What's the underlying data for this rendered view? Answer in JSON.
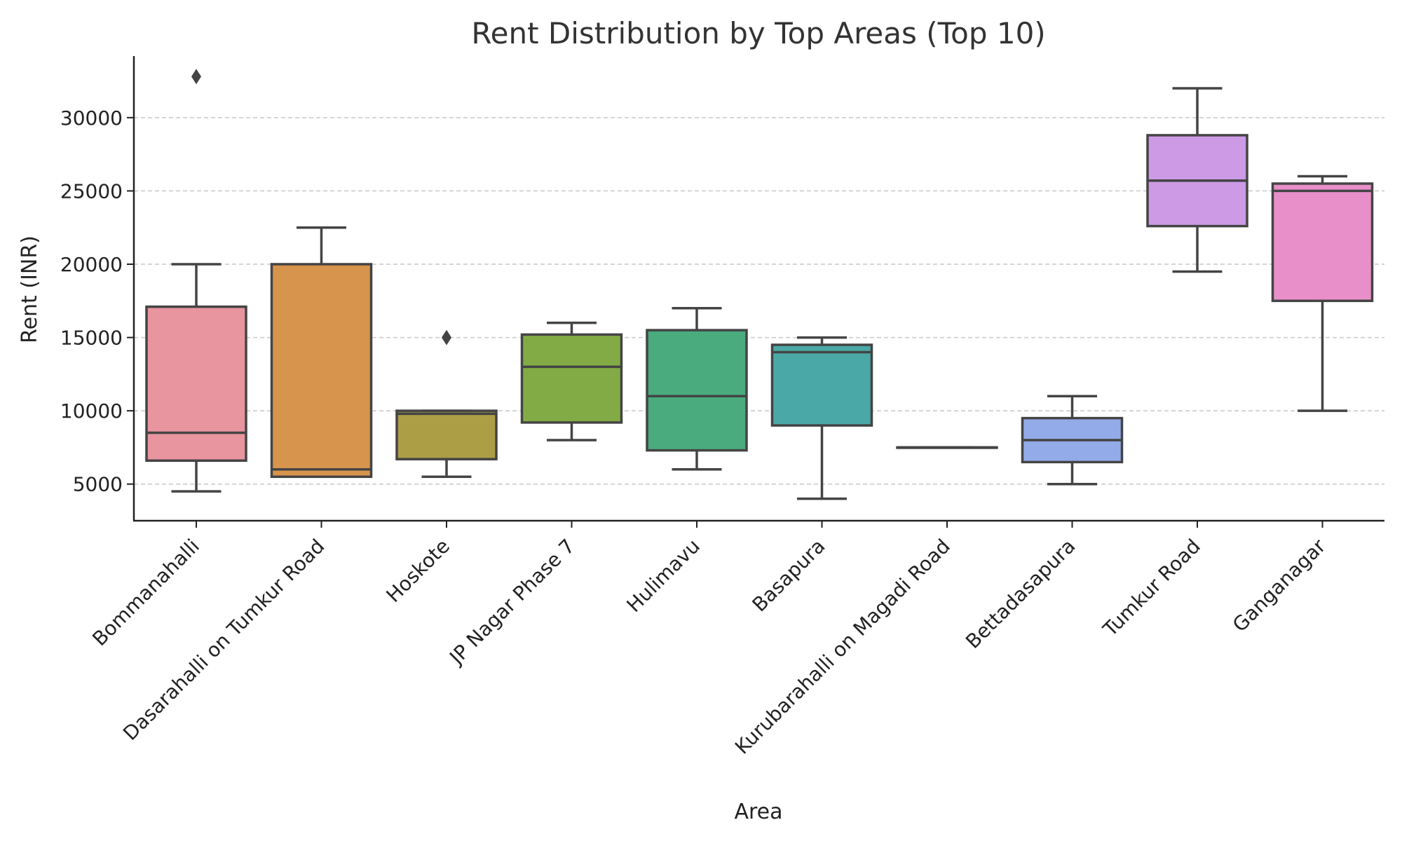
{
  "chart_data": {
    "type": "box",
    "title": "Rent Distribution by Top Areas (Top 10)",
    "xlabel": "Area",
    "ylabel": "Rent (INR)",
    "ylim": [
      2500,
      34200
    ],
    "yticks": [
      5000,
      10000,
      15000,
      20000,
      25000,
      30000
    ],
    "grid": "horizontal-dashed",
    "categories": [
      "Bommanahalli",
      "Dasarahalli on Tumkur Road",
      "Hoskote",
      "JP Nagar Phase 7",
      "Hulimavu",
      "Basapura",
      "Kurubarahalli on Magadi Road",
      "Bettadasapura",
      "Tumkur Road",
      "Ganganagar"
    ],
    "boxes": [
      {
        "whisker_low": 4500,
        "q1": 6600,
        "median": 8500,
        "q3": 17100,
        "whisker_high": 20000,
        "outliers": [
          32800
        ],
        "color": "#e8959f"
      },
      {
        "whisker_low": 5500,
        "q1": 5500,
        "median": 6000,
        "q3": 20000,
        "whisker_high": 22500,
        "outliers": [],
        "color": "#d7944c"
      },
      {
        "whisker_low": 5500,
        "q1": 6700,
        "median": 9800,
        "q3": 10000,
        "whisker_high": 10000,
        "outliers": [
          15000
        ],
        "color": "#ab9e45"
      },
      {
        "whisker_low": 8000,
        "q1": 9200,
        "median": 13000,
        "q3": 15200,
        "whisker_high": 16000,
        "outliers": [],
        "color": "#82ab45"
      },
      {
        "whisker_low": 6000,
        "q1": 7300,
        "median": 11000,
        "q3": 15500,
        "whisker_high": 17000,
        "outliers": [],
        "color": "#49ab7e"
      },
      {
        "whisker_low": 4000,
        "q1": 9000,
        "median": 14000,
        "q3": 14500,
        "whisker_high": 15000,
        "outliers": [],
        "color": "#4aa9a7"
      },
      {
        "whisker_low": 7500,
        "q1": 7500,
        "median": 7500,
        "q3": 7500,
        "whisker_high": 7500,
        "outliers": [],
        "color": "#4ba6c7"
      },
      {
        "whisker_low": 5000,
        "q1": 6500,
        "median": 8000,
        "q3": 9500,
        "whisker_high": 11000,
        "outliers": [],
        "color": "#93abe8"
      },
      {
        "whisker_low": 19500,
        "q1": 22600,
        "median": 25700,
        "q3": 28800,
        "whisker_high": 32000,
        "outliers": [],
        "color": "#cd9ae6"
      },
      {
        "whisker_low": 10000,
        "q1": 17500,
        "median": 25000,
        "q3": 25500,
        "whisker_high": 26000,
        "outliers": [],
        "color": "#e88fc9"
      }
    ]
  }
}
